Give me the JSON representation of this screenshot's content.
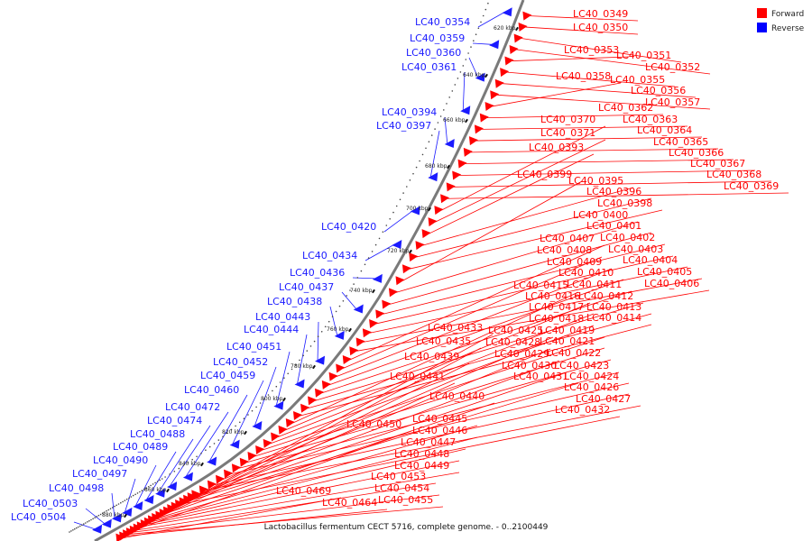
{
  "caption": "Lactobacillus fermentum CECT 5716, complete genome. - 0..2100449",
  "legend": [
    {
      "label": "Forward",
      "color": "#ff0000"
    },
    {
      "label": "Reverse",
      "color": "#0000ff"
    }
  ],
  "colors": {
    "forward": "#ff0000",
    "reverse": "#1a1aff",
    "backbone": "#7a7a7a",
    "tick": "#111111"
  },
  "ticks": [
    "620 kbp",
    "640 kbp",
    "660 kbp",
    "680 kbp",
    "700 kbp",
    "720 kbp",
    "740 kbp",
    "760 kbp",
    "780 kbp",
    "800 kbp",
    "820 kbp",
    "840 kbp",
    "860 kbp",
    "880 kbp"
  ],
  "forward_labels": [
    "LC40_0349",
    "LC40_0350",
    "LC40_0351",
    "LC40_0352",
    "LC40_0353",
    "LC40_0355",
    "LC40_0356",
    "LC40_0357",
    "LC40_0358",
    "LC40_0362",
    "LC40_0363",
    "LC40_0364",
    "LC40_0365",
    "LC40_0366",
    "LC40_0367",
    "LC40_0368",
    "LC40_0369",
    "LC40_0370",
    "LC40_0371",
    "LC40_0393",
    "LC40_0395",
    "LC40_0396",
    "LC40_0398",
    "LC40_0399",
    "LC40_0400",
    "LC40_0401",
    "LC40_0402",
    "LC40_0403",
    "LC40_0404",
    "LC40_0405",
    "LC40_0406",
    "LC40_0407",
    "LC40_0408",
    "LC40_0409",
    "LC40_0410",
    "LC40_0411",
    "LC40_0412",
    "LC40_0413",
    "LC40_0414",
    "LC40_0415",
    "LC40_0416",
    "LC40_0417",
    "LC40_0418",
    "LC40_0419",
    "LC40_0421",
    "LC40_0422",
    "LC40_0423",
    "LC40_0424",
    "LC40_0425",
    "LC40_0426",
    "LC40_0427",
    "LC40_0428",
    "LC40_0429",
    "LC40_0430",
    "LC40_0431",
    "LC40_0432",
    "LC40_0433",
    "LC40_0435",
    "LC40_0439",
    "LC40_0440",
    "LC40_0441",
    "LC40_0445",
    "LC40_0446",
    "LC40_0447",
    "LC40_0448",
    "LC40_0449",
    "LC40_0450",
    "LC40_0453",
    "LC40_0454",
    "LC40_0455",
    "LC40_0464",
    "LC40_0469"
  ],
  "reverse_labels": [
    "LC40_0354",
    "LC40_0359",
    "LC40_0360",
    "LC40_0361",
    "LC40_0394",
    "LC40_0397",
    "LC40_0420",
    "LC40_0434",
    "LC40_0436",
    "LC40_0437",
    "LC40_0438",
    "LC40_0443",
    "LC40_0444",
    "LC40_0451",
    "LC40_0452",
    "LC40_0459",
    "LC40_0460",
    "LC40_0472",
    "LC40_0474",
    "LC40_0488",
    "LC40_0489",
    "LC40_0490",
    "LC40_0497",
    "LC40_0498",
    "LC40_0503",
    "LC40_0504"
  ]
}
